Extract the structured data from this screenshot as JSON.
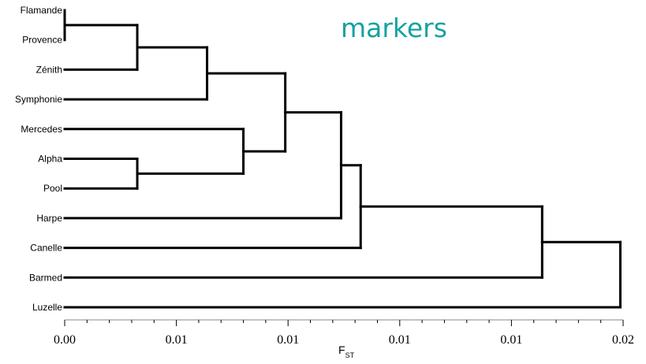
{
  "title": "markers",
  "title_color": "#14a3a1",
  "axis": {
    "label_main": "F",
    "label_sub": "ST",
    "ticks": [
      "0.00",
      "0.01",
      "0.01",
      "0.01",
      "0.01",
      "0.02"
    ]
  },
  "leaves": [
    "Flamande",
    "Provence",
    "Zénith",
    "Symphonie",
    "Mercedes",
    "Alpha",
    "Pool",
    "Harpe",
    "Canelle",
    "Barmed",
    "Luzelle"
  ],
  "dendrogram": {
    "merges": [
      {
        "a": "L0",
        "b": "L1",
        "height": 0.0
      },
      {
        "a": "N0",
        "b": "L2",
        "height": 0.0026
      },
      {
        "a": "N1",
        "b": "L3",
        "height": 0.0051
      },
      {
        "a": "L5",
        "b": "L6",
        "height": 0.0026
      },
      {
        "a": "L4",
        "b": "N3",
        "height": 0.0064
      },
      {
        "a": "N2",
        "b": "N4",
        "height": 0.0079
      },
      {
        "a": "N5",
        "b": "L7",
        "height": 0.0099
      },
      {
        "a": "N6",
        "b": "L8",
        "height": 0.0106
      },
      {
        "a": "N7",
        "b": "L9",
        "height": 0.0171
      },
      {
        "a": "N8",
        "b": "L10",
        "height": 0.0199
      }
    ]
  }
}
